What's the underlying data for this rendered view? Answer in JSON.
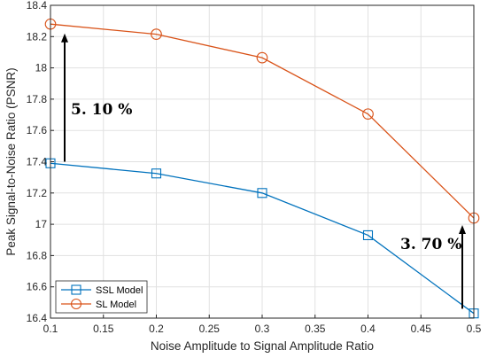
{
  "chart_data": {
    "type": "line",
    "title": "",
    "xlabel": "Noise Amplitude to Signal Amplitude Ratio",
    "ylabel": "Peak Signal-to-Noise Ratio (PSNR)",
    "xlim": [
      0.1,
      0.5
    ],
    "ylim": [
      16.4,
      18.4
    ],
    "grid": true,
    "legend_position": "bottom-left",
    "x_ticks": [
      "0.1",
      "0.15",
      "0.2",
      "0.25",
      "0.3",
      "0.35",
      "0.4",
      "0.45",
      "0.5"
    ],
    "y_ticks": [
      "16.4",
      "16.6",
      "16.8",
      "17",
      "17.2",
      "17.4",
      "17.6",
      "17.8",
      "18",
      "18.2",
      "18.4"
    ],
    "x": [
      0.1,
      0.2,
      0.3,
      0.4,
      0.5
    ],
    "series": [
      {
        "name": "SSL Model",
        "marker": "square",
        "color": "#0072BD",
        "values": [
          17.39,
          17.325,
          17.2,
          16.93,
          16.43
        ]
      },
      {
        "name": "SL Model",
        "marker": "circle",
        "color": "#D95319",
        "values": [
          18.28,
          18.215,
          18.065,
          17.705,
          17.04
        ]
      }
    ],
    "annotations": [
      {
        "text": "5. 10 %",
        "x": 0.1,
        "y_from": 17.39,
        "y_to": 18.28
      },
      {
        "text": "3. 70 %",
        "x": 0.5,
        "y_from": 16.43,
        "y_to": 17.04
      }
    ]
  }
}
